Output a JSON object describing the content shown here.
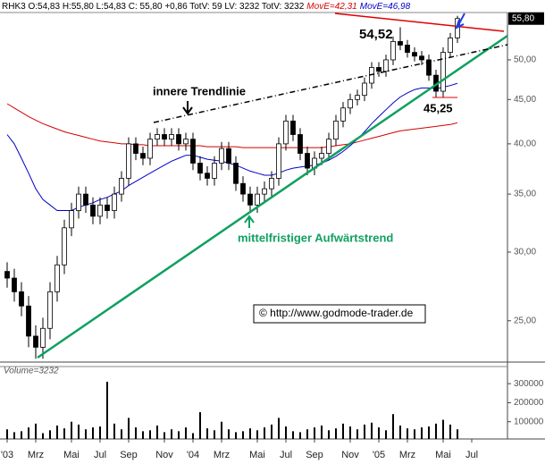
{
  "chart_data": {
    "type": "candlestick",
    "header": "RHK3 O:54,83 H:55,80 L:54,83 C: 55,80 +0,86 TotV: 59 LV: 3232 TotV: 3232",
    "log_scale": true,
    "ylim": [
      22.4,
      56.7
    ],
    "yticks": [
      {
        "value": 25,
        "label": "25,00"
      },
      {
        "value": 30,
        "label": "30,00"
      },
      {
        "value": 35,
        "label": "35,00"
      },
      {
        "value": 40,
        "label": "40,00"
      },
      {
        "value": 45,
        "label": "45,00"
      },
      {
        "value": 50,
        "label": "50,00"
      }
    ],
    "last_price": {
      "value": 55.8,
      "label": "55,80"
    },
    "categories": [
      "'03",
      null,
      null,
      null,
      "Mrz",
      null,
      null,
      null,
      null,
      "Mai",
      null,
      null,
      null,
      "Jul",
      null,
      null,
      null,
      "Sep",
      null,
      null,
      null,
      null,
      "Nov",
      null,
      null,
      null,
      "'04",
      null,
      null,
      null,
      "Mrz",
      null,
      null,
      null,
      null,
      "Mai",
      null,
      null,
      null,
      "Jul",
      null,
      null,
      null,
      "Sep",
      null,
      null,
      null,
      null,
      "Nov",
      null,
      null,
      null,
      "'05",
      null,
      null,
      null,
      "Mrz",
      null,
      null,
      null,
      null,
      "Mai",
      null,
      null,
      null,
      "Jul"
    ],
    "open": [
      28.5,
      28,
      27,
      26,
      24,
      23.3,
      24.5,
      27,
      29,
      32,
      33.5,
      35,
      34,
      33,
      34,
      33.5,
      35,
      36.5,
      40,
      39,
      38.5,
      40.5,
      41,
      40.5,
      41,
      40,
      40.5,
      38,
      37,
      36.5,
      38,
      39.5,
      38,
      36,
      35,
      34,
      35,
      35.5,
      36.5,
      40,
      42.5,
      41,
      39,
      37.5,
      38.5,
      39,
      40.5,
      42.5,
      44,
      45,
      45.5,
      47,
      49,
      48.5,
      50,
      52.5,
      52,
      51,
      50.5,
      50,
      48,
      46,
      51,
      53,
      null,
      null
    ],
    "high": [
      29.2,
      28.7,
      27.7,
      26.7,
      24.7,
      25.2,
      27.7,
      29.7,
      32.7,
      34.2,
      35.7,
      35.7,
      34.7,
      34.7,
      34.7,
      35.7,
      37.2,
      40.7,
      40.7,
      39.7,
      41.2,
      41.7,
      41.7,
      41.7,
      41.7,
      41.2,
      41.2,
      38.7,
      37.7,
      38.7,
      40.2,
      40.2,
      38.7,
      36.7,
      35.7,
      35.7,
      36.2,
      37.2,
      40.7,
      43.2,
      43.2,
      41.7,
      39.7,
      39.2,
      39.7,
      41.2,
      43.2,
      44.7,
      45.7,
      46.2,
      47.7,
      49.7,
      49.7,
      50.7,
      53.2,
      54.52,
      52.7,
      51.7,
      51.2,
      50.7,
      48.7,
      51.7,
      53.7,
      56.2,
      null,
      null
    ],
    "low": [
      27.3,
      26.3,
      25.3,
      23.3,
      22.6,
      22.6,
      23.8,
      26.3,
      28.3,
      31.3,
      32.8,
      33.3,
      32.3,
      32.3,
      32.8,
      32.8,
      34.3,
      35.8,
      38.3,
      37.8,
      37.8,
      39.8,
      39.8,
      39.8,
      39.3,
      39.3,
      37.3,
      36.3,
      35.8,
      35.8,
      37.3,
      37.3,
      35.3,
      34.3,
      33.3,
      33.3,
      34.3,
      34.8,
      35.8,
      39.3,
      40.3,
      38.3,
      36.8,
      36.8,
      37.8,
      38.3,
      39.8,
      41.8,
      43.3,
      44.3,
      44.8,
      46.3,
      47.8,
      47.8,
      49.3,
      51.3,
      50.3,
      49.8,
      49.3,
      47.3,
      45.25,
      45.3,
      50.3,
      52.3,
      null,
      null
    ],
    "close": [
      28,
      27,
      26,
      24,
      23.3,
      24.5,
      27,
      29,
      32,
      33.5,
      35,
      34,
      33,
      34,
      33.5,
      35,
      36.5,
      40,
      39,
      38.5,
      40.5,
      41,
      40.5,
      41,
      40,
      40.5,
      38,
      37,
      36.5,
      38,
      39.5,
      38,
      36,
      35,
      34,
      35,
      35.5,
      36.5,
      40,
      42.5,
      41,
      39,
      37.5,
      38.5,
      39,
      40.5,
      42.5,
      44,
      45,
      45.5,
      47,
      49,
      48.5,
      50,
      52.5,
      52,
      51,
      50.5,
      50,
      48,
      46,
      51,
      53,
      55.8,
      null,
      null
    ],
    "series": [
      {
        "name": "MovE=42,31",
        "color": "#d40000",
        "values": [
          44.5,
          44,
          43.5,
          43,
          42.6,
          42.2,
          41.9,
          41.6,
          41.3,
          41.1,
          40.9,
          40.7,
          40.5,
          40.3,
          40.2,
          40.1,
          40,
          40,
          39.9,
          39.9,
          39.8,
          39.8,
          39.8,
          39.8,
          39.8,
          39.8,
          39.8,
          39.8,
          39.7,
          39.7,
          39.7,
          39.7,
          39.7,
          39.6,
          39.6,
          39.6,
          39.6,
          39.6,
          39.6,
          39.6,
          39.6,
          39.6,
          39.6,
          39.6,
          39.6,
          39.7,
          39.8,
          39.9,
          40,
          40.2,
          40.4,
          40.6,
          40.8,
          41,
          41.2,
          41.4,
          41.5,
          41.6,
          41.7,
          41.8,
          41.9,
          42,
          42.1,
          42.31,
          null,
          null
        ]
      },
      {
        "name": "MovE=46,98",
        "color": "#0000c8",
        "values": [
          41,
          40,
          38.5,
          37,
          35.5,
          34.5,
          34,
          33.5,
          33.5,
          33.5,
          33.8,
          34,
          34.2,
          34.5,
          34.7,
          35,
          35.3,
          35.8,
          36.2,
          36.6,
          37,
          37.4,
          37.8,
          38.2,
          38.5,
          38.8,
          38.8,
          38.6,
          38.4,
          38.3,
          38.2,
          38,
          37.8,
          37.5,
          37.2,
          37,
          36.8,
          36.8,
          37,
          37.3,
          37.5,
          37.6,
          37.7,
          37.8,
          38,
          38.3,
          38.7,
          39.2,
          39.8,
          40.5,
          41.3,
          42.2,
          43,
          43.8,
          44.6,
          45.3,
          45.8,
          46.2,
          46.4,
          46.4,
          46.3,
          46.5,
          46.7,
          46.98,
          null,
          null
        ]
      }
    ],
    "annotations": [
      "innere Trendlinie",
      "54,52",
      "45,25",
      "mittelfristiger Aufwärtstrend",
      "© http://www.godmode-trader.de"
    ],
    "volume": {
      "label": "Volume=3232",
      "ylim": [
        0,
        390000
      ],
      "yticks": [
        100000,
        200000,
        300000
      ],
      "values": [
        60000,
        45000,
        50000,
        70000,
        90000,
        40000,
        55000,
        80000,
        65000,
        100000,
        85000,
        60000,
        70000,
        75000,
        310000,
        90000,
        60000,
        120000,
        70000,
        50000,
        55000,
        80000,
        45000,
        60000,
        50000,
        70000,
        40000,
        150000,
        65000,
        55000,
        100000,
        60000,
        45000,
        50000,
        65000,
        55000,
        70000,
        85000,
        120000,
        75000,
        50000,
        45000,
        60000,
        70000,
        80000,
        55000,
        65000,
        90000,
        75000,
        60000,
        85000,
        95000,
        70000,
        55000,
        140000,
        80000,
        65000,
        60000,
        70000,
        75000,
        90000,
        110000,
        85000,
        60000,
        null,
        null
      ]
    }
  }
}
